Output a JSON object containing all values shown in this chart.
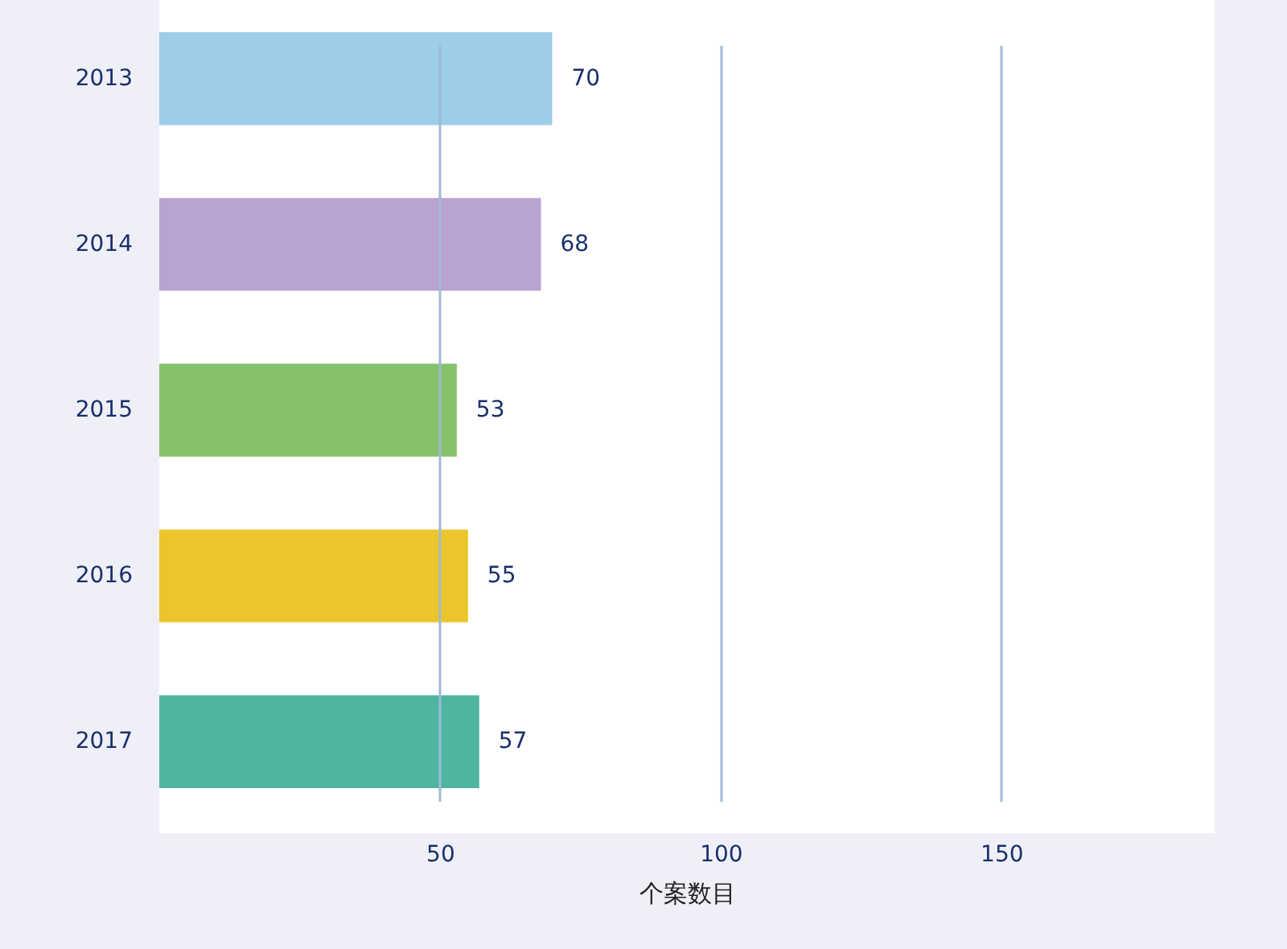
{
  "chart_data": {
    "type": "bar",
    "orientation": "horizontal",
    "xlabel": "个案数目",
    "categories": [
      "2013",
      "2014",
      "2015",
      "2016",
      "2017"
    ],
    "values": [
      70,
      68,
      53,
      55,
      57
    ],
    "colors": [
      "#9dcde8",
      "#b9a3d0",
      "#86c26b",
      "#ebc52c",
      "#4fb5a1"
    ],
    "xlim": [
      0,
      188
    ],
    "xticks": [
      50,
      100,
      150
    ],
    "grid": "x",
    "data_labels": true
  }
}
